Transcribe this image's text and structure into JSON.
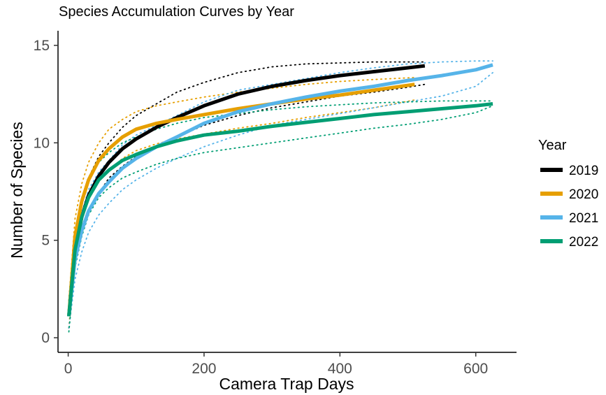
{
  "chart_data": {
    "type": "line",
    "title": "Species Accumulation Curves by Year",
    "xlabel": "Camera Trap Days",
    "ylabel": "Number of Species",
    "xlim": [
      -15,
      660
    ],
    "ylim": [
      -0.75,
      15.75
    ],
    "x_ticks": [
      0,
      200,
      400,
      600
    ],
    "x_tick_labels": [
      "0",
      "200",
      "400",
      "600"
    ],
    "y_ticks": [
      0,
      5,
      10,
      15
    ],
    "y_tick_labels": [
      "0",
      "5",
      "10",
      "15"
    ],
    "grid": false,
    "legend": {
      "title": "Year",
      "position": "right"
    },
    "series": [
      {
        "name": "2019",
        "color": "#000000",
        "x": [
          1,
          10,
          20,
          30,
          45,
          60,
          80,
          100,
          130,
          160,
          200,
          250,
          300,
          350,
          400,
          450,
          500,
          525
        ],
        "y": [
          1.1,
          4.5,
          6.2,
          7.3,
          8.3,
          9.0,
          9.7,
          10.2,
          10.8,
          11.3,
          11.9,
          12.5,
          12.9,
          13.2,
          13.45,
          13.65,
          13.85,
          13.95
        ],
        "lower": [
          0.5,
          3.7,
          5.4,
          6.5,
          7.4,
          8.2,
          8.8,
          9.3,
          9.8,
          10.3,
          10.9,
          11.4,
          11.8,
          12.1,
          12.4,
          12.6,
          12.85,
          13.0
        ],
        "upper": [
          1.9,
          5.3,
          7.1,
          8.2,
          9.3,
          10.0,
          10.8,
          11.4,
          12.0,
          12.6,
          13.1,
          13.6,
          13.9,
          14.05,
          14.1,
          14.15,
          14.15,
          14.15
        ]
      },
      {
        "name": "2020",
        "color": "#E69F00",
        "x": [
          1,
          10,
          20,
          30,
          45,
          60,
          80,
          100,
          130,
          160,
          200,
          250,
          300,
          350,
          400,
          450,
          510
        ],
        "y": [
          1.1,
          5.2,
          7.0,
          8.1,
          9.1,
          9.7,
          10.3,
          10.7,
          11.0,
          11.2,
          11.45,
          11.75,
          12.0,
          12.25,
          12.45,
          12.7,
          13.0
        ],
        "lower": [
          0.5,
          4.3,
          6.0,
          7.1,
          8.0,
          8.6,
          9.2,
          9.6,
          9.95,
          10.2,
          10.45,
          10.75,
          11.0,
          11.3,
          11.55,
          11.8,
          12.2
        ],
        "upper": [
          1.9,
          6.1,
          7.9,
          9.0,
          10.0,
          10.7,
          11.2,
          11.6,
          11.9,
          12.1,
          12.35,
          12.6,
          12.8,
          13.0,
          13.15,
          13.25,
          13.35
        ]
      },
      {
        "name": "2021",
        "color": "#56B4E9",
        "x": [
          1,
          10,
          20,
          30,
          45,
          60,
          80,
          100,
          130,
          160,
          200,
          250,
          300,
          350,
          400,
          450,
          500,
          550,
          600,
          625
        ],
        "y": [
          1.1,
          4.0,
          5.5,
          6.5,
          7.4,
          8.0,
          8.7,
          9.2,
          9.8,
          10.3,
          11.0,
          11.6,
          12.0,
          12.35,
          12.65,
          12.9,
          13.2,
          13.45,
          13.75,
          14.0
        ],
        "lower": [
          0.5,
          3.0,
          4.4,
          5.4,
          6.3,
          6.9,
          7.6,
          8.1,
          8.7,
          9.2,
          9.8,
          10.4,
          10.9,
          11.2,
          11.5,
          11.8,
          12.1,
          12.4,
          12.9,
          13.6
        ],
        "upper": [
          1.9,
          4.9,
          6.4,
          7.6,
          8.5,
          9.1,
          9.9,
          10.4,
          10.9,
          11.4,
          12.1,
          12.7,
          13.0,
          13.3,
          13.6,
          13.85,
          14.05,
          14.15,
          14.2,
          14.2
        ]
      },
      {
        "name": "2022",
        "color": "#009E73",
        "x": [
          1,
          10,
          20,
          30,
          45,
          60,
          80,
          100,
          130,
          160,
          200,
          250,
          300,
          350,
          400,
          450,
          500,
          550,
          600,
          625
        ],
        "y": [
          1.1,
          4.5,
          6.2,
          7.2,
          8.1,
          8.6,
          9.1,
          9.4,
          9.8,
          10.1,
          10.4,
          10.6,
          10.85,
          11.05,
          11.25,
          11.45,
          11.6,
          11.75,
          11.9,
          12.0
        ],
        "lower": [
          0.3,
          3.6,
          5.2,
          6.3,
          7.2,
          7.7,
          8.2,
          8.5,
          8.9,
          9.2,
          9.5,
          9.75,
          10.0,
          10.25,
          10.5,
          10.75,
          10.95,
          11.2,
          11.55,
          11.9
        ],
        "upper": [
          1.9,
          5.4,
          7.2,
          8.1,
          9.0,
          9.5,
          10.0,
          10.3,
          10.7,
          11.0,
          11.3,
          11.5,
          11.7,
          11.85,
          11.95,
          12.05,
          12.1,
          12.15,
          12.15,
          12.15
        ]
      }
    ]
  }
}
